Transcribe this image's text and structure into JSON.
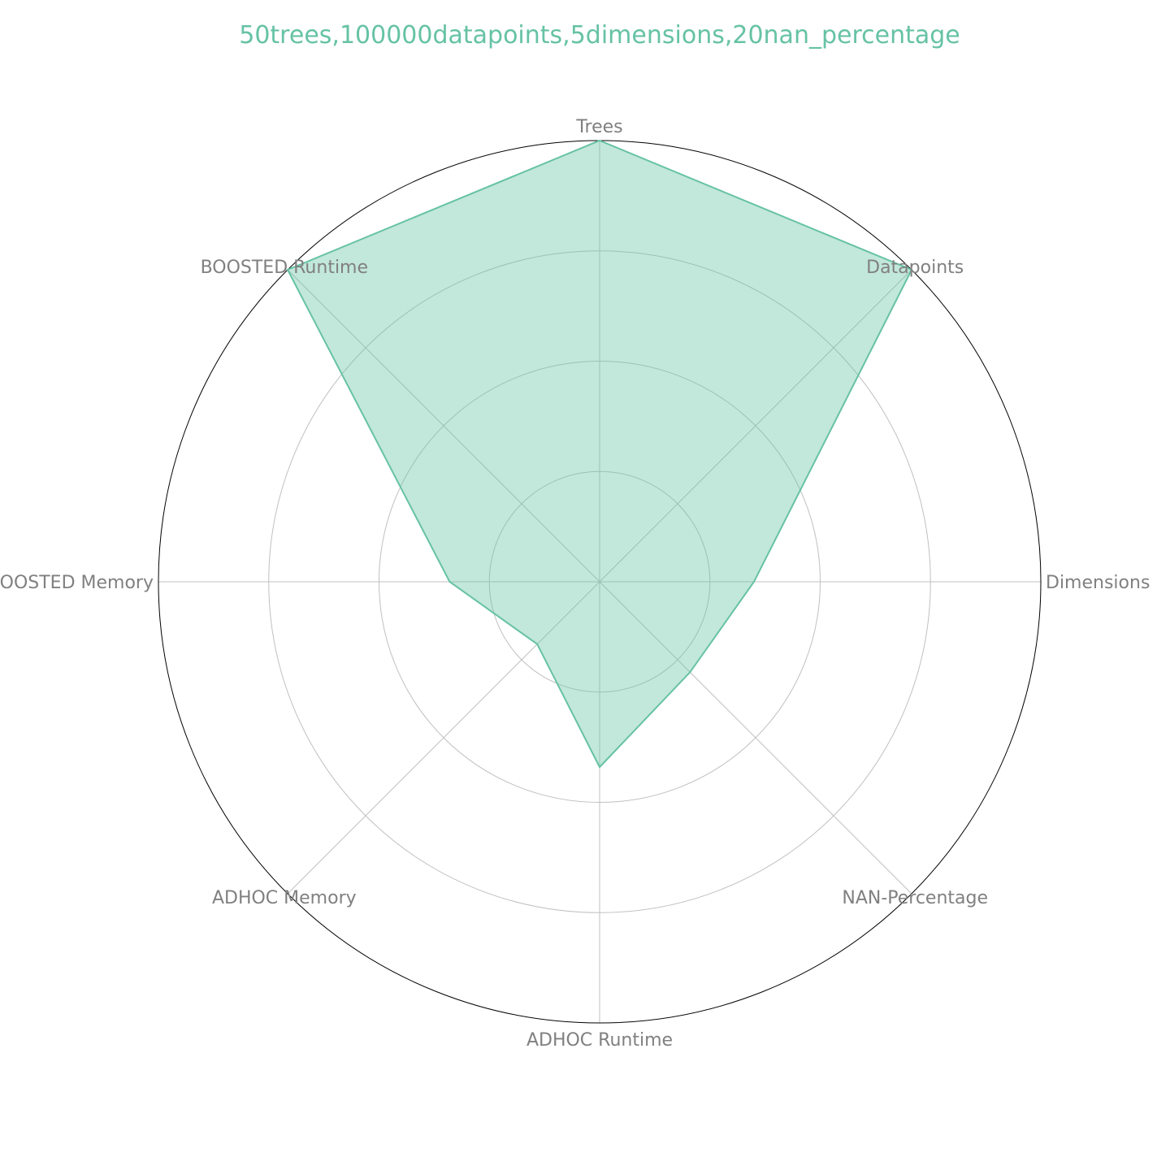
{
  "chart_data": {
    "type": "radar",
    "title": "50trees,100000datapoints,5dimensions,20nan_percentage",
    "categories": [
      "Trees",
      "Datapoints",
      "Dimensions",
      "NAN-Percentage",
      "ADHOC Runtime",
      "ADHOC Memory",
      "BOOSTED Memory",
      "BOOSTED Runtime"
    ],
    "series": [
      {
        "values": [
          1.0,
          1.0,
          0.35,
          0.29,
          0.42,
          0.2,
          0.34,
          1.0
        ]
      }
    ],
    "rlim": [
      0,
      1
    ],
    "grid_rings": [
      0.25,
      0.5,
      0.75,
      1.0
    ],
    "grid": true,
    "colors": {
      "series": "#66c2a5",
      "label": "#808080",
      "grid": "#c0c0c0",
      "outer": "#000000"
    }
  }
}
